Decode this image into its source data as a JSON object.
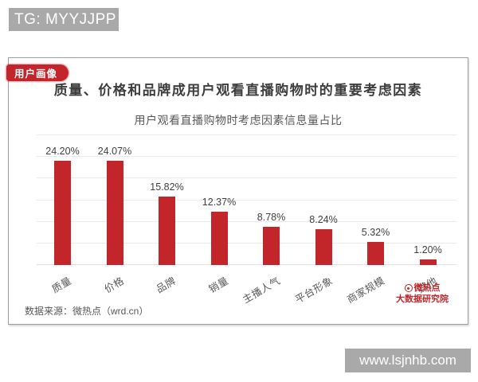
{
  "watermarks": {
    "top_text": "TG: MYYJJPP",
    "bottom_text": "www.lsjnhb.com"
  },
  "card": {
    "badge_label": "用户画像",
    "title": "质量、价格和品牌成用户观看直播购物时的重要考虑因素",
    "source_note": "数据来源：微热点（wrd.cn）",
    "logo": {
      "line1": "微热点",
      "line2": "大数据研究院"
    }
  },
  "chart_data": {
    "type": "bar",
    "title": "用户观看直播购物时考虑因素信息量占比",
    "categories": [
      "质量",
      "价格",
      "品牌",
      "销量",
      "主播人气",
      "平台形象",
      "商家规模",
      "其他"
    ],
    "values": [
      24.2,
      24.07,
      15.82,
      12.37,
      8.78,
      8.24,
      5.32,
      1.2
    ],
    "value_labels": [
      "24.20%",
      "24.07%",
      "15.82%",
      "12.37%",
      "8.78%",
      "8.24%",
      "5.32%",
      "1.20%"
    ],
    "xlabel": "",
    "ylabel": "",
    "ylim": [
      0,
      30
    ],
    "grid_step": 5,
    "grid": true,
    "legend": false,
    "bar_color": "#c2262b"
  },
  "colors": {
    "accent_red": "#c2262b",
    "watermark_gray": "#a9a9a9",
    "title_text": "#3d3d3d",
    "muted_text": "#595959",
    "gridline": "#ebebeb",
    "card_border": "#9e9e9e"
  }
}
